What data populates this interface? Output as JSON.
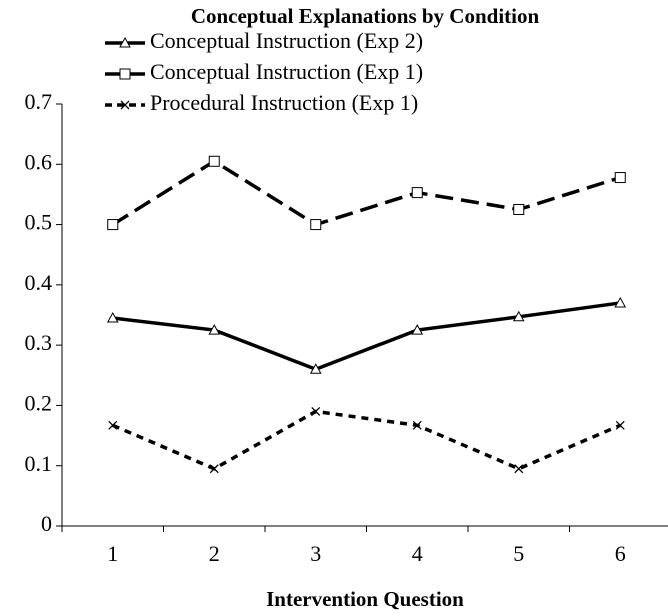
{
  "chart_data": {
    "type": "line",
    "title": "Conceptual Explanations by Condition",
    "x_label": "Intervention Question",
    "categories": [
      "1",
      "2",
      "3",
      "4",
      "5",
      "6"
    ],
    "series": [
      {
        "name": "Conceptual Instruction (Exp 2)",
        "color": "#000000",
        "marker": "triangle",
        "dash": "solid",
        "values": [
          0.345,
          0.325,
          0.26,
          0.325,
          0.347,
          0.37
        ]
      },
      {
        "name": "Conceptual Instruction (Exp 1)",
        "color": "#000000",
        "marker": "square",
        "dash": "long",
        "values": [
          0.5,
          0.605,
          0.5,
          0.553,
          0.525,
          0.578
        ]
      },
      {
        "name": "Procedural Instruction (Exp 1)",
        "color": "#000000",
        "marker": "cross",
        "dash": "short",
        "values": [
          0.167,
          0.095,
          0.19,
          0.167,
          0.095,
          0.167
        ]
      }
    ],
    "ylim": [
      0,
      0.7
    ],
    "yticks": [
      0,
      0.1,
      0.2,
      0.3,
      0.4,
      0.5,
      0.6,
      0.7
    ],
    "grid": false
  }
}
